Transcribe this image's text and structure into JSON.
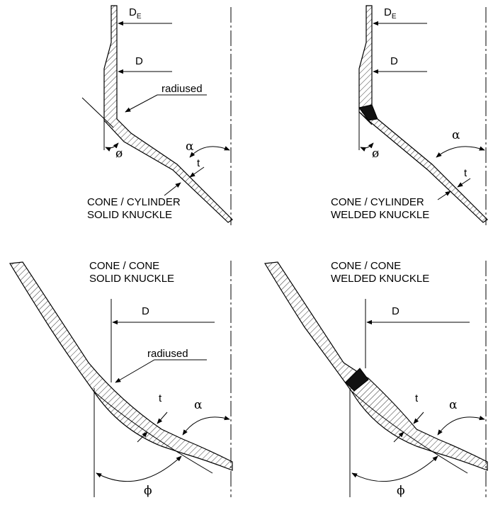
{
  "panels": {
    "cone_cylinder_solid": {
      "caption_line1": "CONE / CYLINDER",
      "caption_line2": "SOLID KNUCKLE",
      "label_de_main": "D",
      "label_de_sub": "E",
      "label_d": "D",
      "label_radiused": "radiused",
      "label_alpha": "α",
      "label_t": "t",
      "label_phi": "ø"
    },
    "cone_cylinder_welded": {
      "caption_line1": "CONE / CYLINDER",
      "caption_line2": "WELDED KNUCKLE",
      "label_de_main": "D",
      "label_de_sub": "E",
      "label_d": "D",
      "label_alpha": "α",
      "label_t": "t",
      "label_phi": "ø"
    },
    "cone_cone_solid": {
      "caption_line1": "CONE / CONE",
      "caption_line2": "SOLID KNUCKLE",
      "label_d": "D",
      "label_radiused": "radiused",
      "label_t": "t",
      "label_alpha": "α",
      "label_phi": "ϕ"
    },
    "cone_cone_welded": {
      "caption_line1": "CONE / CONE",
      "caption_line2": "WELDED KNUCKLE",
      "label_d": "D",
      "label_t": "t",
      "label_alpha": "α",
      "label_phi": "ϕ"
    }
  }
}
